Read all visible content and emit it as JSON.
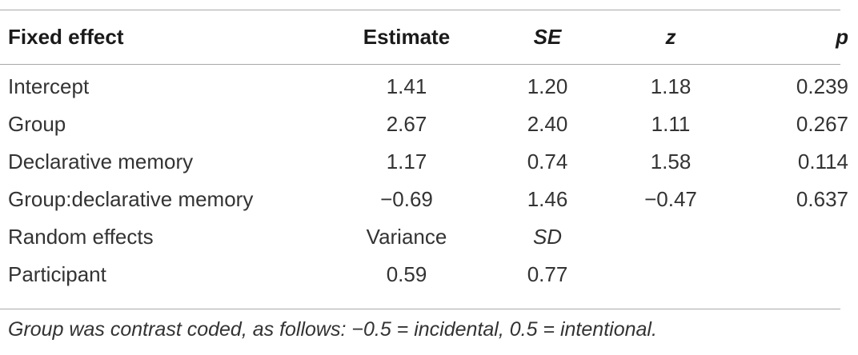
{
  "table": {
    "headers": {
      "fixed_effect": "Fixed effect",
      "estimate": "Estimate",
      "se": "SE",
      "z": "z",
      "p": "p"
    },
    "rows": [
      {
        "label": "Intercept",
        "estimate": "1.41",
        "se": "1.20",
        "z": "1.18",
        "p": "0.239"
      },
      {
        "label": "Group",
        "estimate": "2.67",
        "se": "2.40",
        "z": "1.11",
        "p": "0.267"
      },
      {
        "label": "Declarative memory",
        "estimate": "1.17",
        "se": "0.74",
        "z": "1.58",
        "p": "0.114"
      },
      {
        "label": "Group:declarative memory",
        "estimate": "−0.69",
        "se": "1.46",
        "z": "−0.47",
        "p": "0.637"
      },
      {
        "label": "Random effects",
        "estimate": "Variance",
        "se": "SD",
        "z": "",
        "p": ""
      },
      {
        "label": "Participant",
        "estimate": "0.59",
        "se": "0.77",
        "z": "",
        "p": ""
      }
    ]
  },
  "footnote": "Group was contrast coded, as follows: −0.5 = incidental, 0.5 = intentional."
}
